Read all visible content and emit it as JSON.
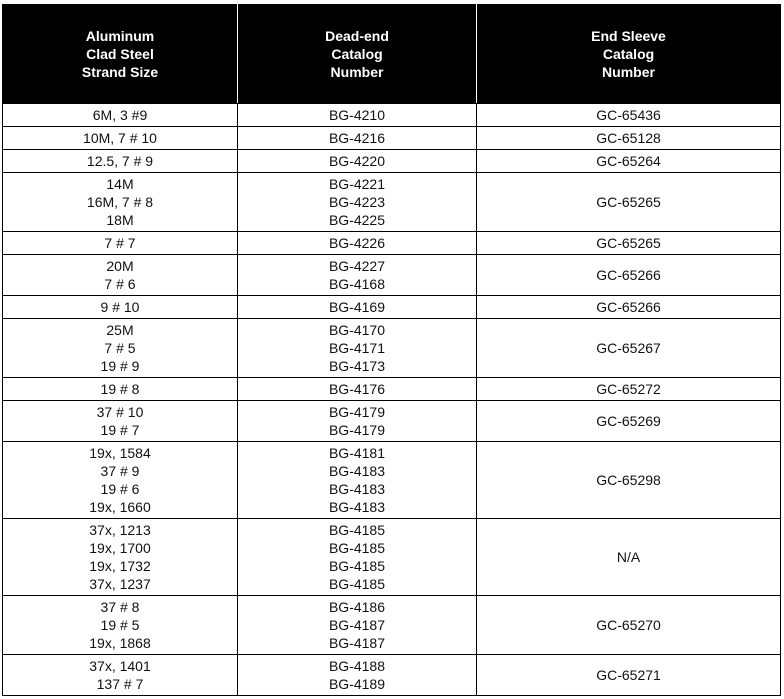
{
  "table": {
    "header": [
      [
        "Aluminum",
        "Clad Steel",
        "Strand Size"
      ],
      [
        "Dead-end",
        "Catalog",
        "Number"
      ],
      [
        "End Sleeve",
        "Catalog",
        "Number"
      ]
    ],
    "rows": [
      [
        [
          "6M, 3 #9"
        ],
        [
          "BG-4210"
        ],
        [
          "GC-65436"
        ]
      ],
      [
        [
          "10M, 7 # 10"
        ],
        [
          "BG-4216"
        ],
        [
          "GC-65128"
        ]
      ],
      [
        [
          "12.5, 7 # 9"
        ],
        [
          "BG-4220"
        ],
        [
          "GC-65264"
        ]
      ],
      [
        [
          "14M",
          "16M, 7 # 8",
          "18M"
        ],
        [
          "BG-4221",
          "BG-4223",
          "BG-4225"
        ],
        [
          "GC-65265"
        ]
      ],
      [
        [
          "7 # 7"
        ],
        [
          "BG-4226"
        ],
        [
          "GC-65265"
        ]
      ],
      [
        [
          "20M",
          "7 # 6"
        ],
        [
          "BG-4227",
          "BG-4168"
        ],
        [
          "GC-65266"
        ]
      ],
      [
        [
          "9 # 10"
        ],
        [
          "BG-4169"
        ],
        [
          "GC-65266"
        ]
      ],
      [
        [
          "25M",
          "7 # 5",
          "19 # 9"
        ],
        [
          "BG-4170",
          "BG-4171",
          "BG-4173"
        ],
        [
          "GC-65267"
        ]
      ],
      [
        [
          "19 # 8"
        ],
        [
          "BG-4176"
        ],
        [
          "GC-65272"
        ]
      ],
      [
        [
          "37 # 10",
          "19 # 7"
        ],
        [
          "BG-4179",
          "BG-4179"
        ],
        [
          "GC-65269"
        ]
      ],
      [
        [
          "19x, 1584",
          "37 # 9",
          "19 # 6",
          "19x, 1660"
        ],
        [
          "BG-4181",
          "BG-4183",
          "BG-4183",
          "BG-4183"
        ],
        [
          "GC-65298"
        ]
      ],
      [
        [
          "37x, 1213",
          "19x, 1700",
          "19x, 1732",
          "37x, 1237"
        ],
        [
          "BG-4185",
          "BG-4185",
          "BG-4185",
          "BG-4185"
        ],
        [
          "N/A"
        ]
      ],
      [
        [
          "37 # 8",
          "19 # 5",
          "19x, 1868"
        ],
        [
          "BG-4186",
          "BG-4187",
          "BG-4187"
        ],
        [
          "GC-65270"
        ]
      ],
      [
        [
          "37x, 1401",
          "137 # 7"
        ],
        [
          "BG-4188",
          "BG-4189"
        ],
        [
          "GC-65271"
        ]
      ]
    ]
  }
}
